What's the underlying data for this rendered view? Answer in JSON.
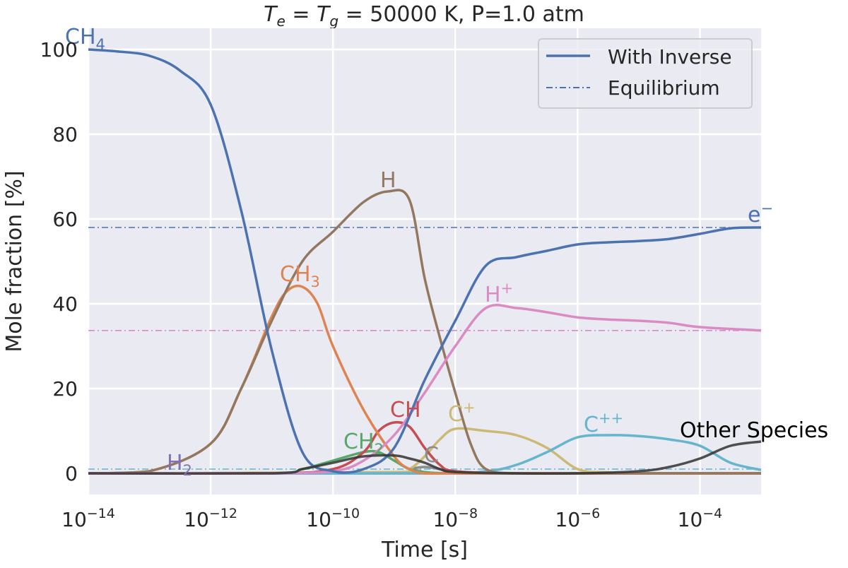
{
  "chart_data": {
    "type": "line",
    "title": "T_e = T_g = 50000 K, P=1.0 atm",
    "title_parts": {
      "te": "T",
      "te_sub": "e",
      "eq": " = ",
      "tg": "T",
      "tg_sub": "g",
      "rest": " = 50000 K, P=1.0 atm"
    },
    "xlabel": "Time [s]",
    "ylabel": "Mole fraction [%]",
    "x_scale": "log",
    "xlim": [
      1e-14,
      0.001
    ],
    "ylim": [
      -5,
      105
    ],
    "grid": true,
    "x_ticks": [
      {
        "base": "10",
        "exp": "−14",
        "value": 1e-14
      },
      {
        "base": "10",
        "exp": "−12",
        "value": 1e-12
      },
      {
        "base": "10",
        "exp": "−10",
        "value": 1e-10
      },
      {
        "base": "10",
        "exp": "−8",
        "value": 1e-08
      },
      {
        "base": "10",
        "exp": "−6",
        "value": 1e-06
      },
      {
        "base": "10",
        "exp": "−4",
        "value": 0.0001
      }
    ],
    "y_ticks": [
      0,
      20,
      40,
      60,
      80,
      100
    ],
    "legend": {
      "placement": "top-right",
      "entries": [
        {
          "label": "With Inverse",
          "style": "solid"
        },
        {
          "label": "Equilibrium",
          "style": "dashdot"
        }
      ]
    },
    "series": [
      {
        "name": "CH4",
        "label": "CH",
        "label_sub": "4",
        "color": "#4C72B0",
        "x": [
          1e-14,
          3.16e-14,
          1e-13,
          3.16e-13,
          1e-12,
          3.16e-12,
          1e-11,
          3.16e-11,
          1e-10,
          3.16e-10,
          1e-09,
          3.16e-09,
          1e-08,
          3.16e-08,
          1e-07,
          3.16e-07,
          1e-06,
          3.16e-06,
          1e-05,
          3.16e-05,
          0.0001,
          0.000316,
          0.001
        ],
        "y": [
          100,
          99.5,
          98.5,
          95,
          87,
          62,
          29,
          5,
          0.5,
          1,
          6,
          22,
          36,
          49,
          51,
          52.5,
          54,
          54.5,
          54.8,
          55.3,
          56.5,
          57.8,
          58
        ],
        "equilibrium": 58
      },
      {
        "name": "H",
        "label": "H",
        "color": "#937860",
        "x": [
          1e-14,
          1e-13,
          1e-12,
          3.16e-12,
          1e-11,
          3.16e-11,
          1e-10,
          3.16e-10,
          7.9e-10,
          1.78e-09,
          3.16e-09,
          5.6e-09,
          1e-08,
          1.78e-08,
          3.16e-08,
          1e-07,
          1e-06,
          1e-05,
          0.0001,
          0.001
        ],
        "y": [
          0,
          0.5,
          7,
          20,
          36,
          50,
          57,
          64,
          66.5,
          64.5,
          46,
          32,
          19,
          7,
          1,
          0,
          0,
          0,
          0,
          0
        ],
        "equilibrium": 0
      },
      {
        "name": "CH3",
        "label": "CH",
        "label_sub": "3",
        "color": "#DD8452",
        "x": [
          1e-14,
          1e-13,
          1e-12,
          3.16e-12,
          1e-11,
          1.78e-11,
          3.16e-11,
          5.6e-11,
          1e-10,
          3.16e-10,
          1e-09,
          1.78e-09,
          3.16e-09,
          1e-08,
          1e-07,
          1e-06,
          1e-05,
          0.0001,
          0.001
        ],
        "y": [
          0,
          0.5,
          7,
          20,
          37,
          43,
          44,
          40,
          30,
          15,
          4,
          1,
          0,
          0,
          0,
          0,
          0,
          0,
          0
        ],
        "equilibrium": 0
      },
      {
        "name": "H+",
        "label": "H",
        "label_sup": "+",
        "color": "#DA8BC3",
        "x": [
          1e-14,
          1e-12,
          1e-11,
          1e-10,
          3.16e-10,
          1e-09,
          3.16e-09,
          1e-08,
          3.16e-08,
          1e-07,
          3.16e-07,
          1e-06,
          3.16e-06,
          1e-05,
          3.16e-05,
          0.0001,
          0.001
        ],
        "y": [
          0,
          0,
          0,
          0.5,
          3,
          9,
          19,
          30,
          39,
          39,
          38,
          36.8,
          36.3,
          36,
          35.5,
          34.5,
          33.7
        ],
        "equilibrium": 33.7
      },
      {
        "name": "CH",
        "label": "CH",
        "color": "#C44E52",
        "x": [
          1e-14,
          1e-11,
          1e-10,
          3.16e-10,
          5.6e-10,
          1e-09,
          1.78e-09,
          3.16e-09,
          5.6e-09,
          1e-08,
          1e-07,
          1e-05,
          0.001
        ],
        "y": [
          0,
          0,
          1,
          5,
          10,
          12,
          11,
          6,
          2,
          0.5,
          0,
          0,
          0
        ],
        "equilibrium": 0
      },
      {
        "name": "CH2",
        "label": "CH",
        "label_sub": "2",
        "color": "#55A868",
        "x": [
          1e-14,
          1e-11,
          3.16e-11,
          1e-10,
          3.16e-10,
          5.6e-10,
          1e-09,
          1.78e-09,
          3.16e-09,
          1e-08,
          1e-06,
          0.001
        ],
        "y": [
          0,
          0,
          1,
          3,
          5,
          5,
          3,
          1,
          0.3,
          0,
          0,
          0
        ],
        "equilibrium": 0
      },
      {
        "name": "H2",
        "label": "H",
        "label_sub": "2",
        "color": "#8172B3",
        "x": [
          1e-14,
          0.001
        ],
        "y": [
          0,
          0
        ],
        "equilibrium": 0
      },
      {
        "name": "C",
        "label": "C",
        "color": "#8C8C8C",
        "x": [
          1e-14,
          1e-09,
          1.78e-09,
          3.16e-09,
          5.6e-09,
          1e-08,
          1e-07,
          0.001
        ],
        "y": [
          0,
          0.2,
          1,
          1.5,
          1,
          0.3,
          0,
          0
        ],
        "equilibrium": 0
      },
      {
        "name": "C+",
        "label": "C",
        "label_sup": "+",
        "color": "#CCB974",
        "x": [
          1e-14,
          1e-09,
          1.78e-09,
          3.16e-09,
          5.6e-09,
          1e-08,
          3.16e-08,
          1e-07,
          3.16e-07,
          1e-06,
          3.16e-06,
          1e-05,
          0.001
        ],
        "y": [
          0,
          0.3,
          1,
          4,
          8,
          10.5,
          10,
          9,
          6,
          1,
          0.2,
          0,
          0
        ],
        "equilibrium": 0
      },
      {
        "name": "C++",
        "label": "C",
        "label_sup": "++",
        "color": "#64B5CD",
        "x": [
          1e-14,
          3.16e-09,
          3.16e-08,
          1e-07,
          3.16e-07,
          1e-06,
          3.16e-06,
          1e-05,
          3.16e-05,
          0.0001,
          0.000316,
          0.001
        ],
        "y": [
          0,
          0,
          0.5,
          2,
          5,
          8.5,
          9,
          8.8,
          8,
          6.5,
          2.5,
          0.8
        ],
        "equilibrium": 1
      },
      {
        "name": "Other Species",
        "label": "Other Species",
        "color": "#333333",
        "x": [
          1e-14,
          1e-11,
          3.16e-11,
          1e-10,
          3.16e-10,
          1e-09,
          1.78e-09,
          3.16e-09,
          5.6e-09,
          1e-08,
          1e-07,
          1e-06,
          1e-05,
          3.16e-05,
          0.0001,
          0.000316,
          0.001
        ],
        "y": [
          0,
          0,
          1,
          2.5,
          4,
          4.2,
          3.5,
          2.5,
          1,
          0.3,
          0,
          0,
          0.5,
          1.5,
          3.5,
          6.5,
          7.5
        ],
        "equilibrium": 0
      }
    ],
    "e_label": {
      "text": "e",
      "sup": "−",
      "color": "#4C72B0"
    }
  }
}
